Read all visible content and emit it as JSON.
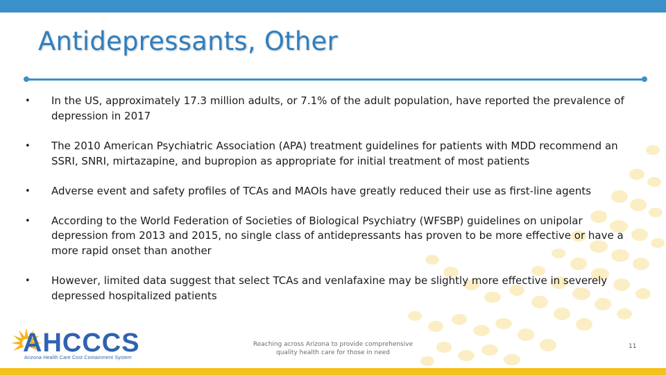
{
  "slide": {
    "title": "Antidepressants, Other",
    "bullets": [
      "In the US, approximately 17.3 million adults, or 7.1% of the adult population, have reported the prevalence of depression in 2017",
      "The 2010 American Psychiatric Association (APA) treatment guidelines for patients with MDD recommend an SSRI, SNRI, mirtazapine, and bupropion as appropriate for initial treatment of most patients",
      "Adverse event and safety profiles of TCAs and MAOIs have greatly reduced their use as first-line agents",
      "According to the World Federation of Societies of Biological Psychiatry (WFSBP) guidelines on unipolar depression from 2013 and 2015, no single class of antidepressants has proven to be more effective or have a more rapid onset than another",
      "However, limited data suggest that select TCAs and venlafaxine may be slightly more effective in severely depressed hospitalized patients"
    ]
  },
  "footer": {
    "logo_text": "AHCCCS",
    "logo_subtitle": "Arizona Health Care Cost Containment System",
    "tagline_line1": "Reaching across Arizona to provide comprehensive",
    "tagline_line2": "quality health care for those in need",
    "page_number": "11"
  },
  "colors": {
    "accent_blue": "#3a90c8",
    "title_blue": "#2f7fbf",
    "footer_yellow": "#f4c21a",
    "decor_dot": "#fbeec4"
  },
  "icons": {
    "logo_mark": "sunburst-icon"
  }
}
